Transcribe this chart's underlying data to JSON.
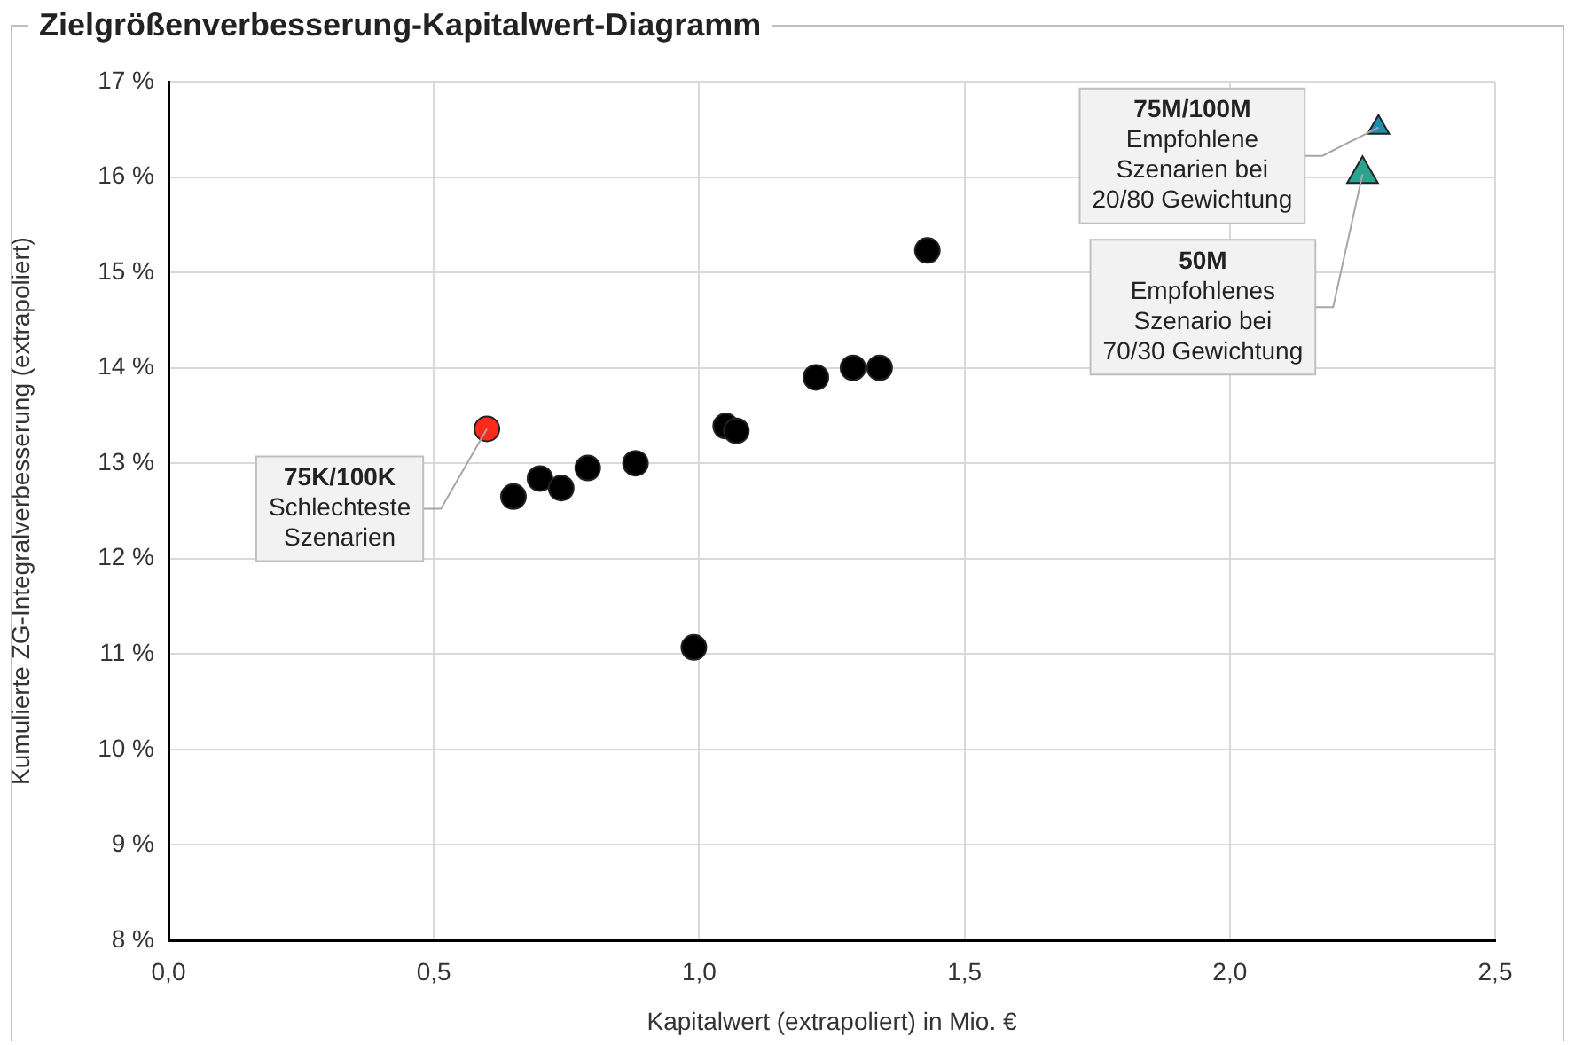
{
  "chart_data": {
    "type": "scatter",
    "title": "Zielgrößenverbesserung-Kapitalwert-Diagramm",
    "xlabel": "Kapitalwert (extrapoliert) in Mio. €",
    "ylabel": "Kumulierte ZG-Integralverbesserung (extrapoliert)",
    "xlim": [
      0,
      2.5
    ],
    "xticks": [
      {
        "value": 0,
        "label": "0,0"
      },
      {
        "value": 0.5,
        "label": "0,5"
      },
      {
        "value": 1,
        "label": "1,0"
      },
      {
        "value": 1.5,
        "label": "1,5"
      },
      {
        "value": 2,
        "label": "2,0"
      },
      {
        "value": 2.5,
        "label": "2,5"
      }
    ],
    "ylim": [
      8,
      17
    ],
    "yticks": [
      {
        "value": 8,
        "label": "8 %"
      },
      {
        "value": 9,
        "label": "9 %"
      },
      {
        "value": 10,
        "label": "10 %"
      },
      {
        "value": 11,
        "label": "11 %"
      },
      {
        "value": 12,
        "label": "12 %"
      },
      {
        "value": 13,
        "label": "13 %"
      },
      {
        "value": 14,
        "label": "14 %"
      },
      {
        "value": 15,
        "label": "15 %"
      },
      {
        "value": 16,
        "label": "16 %"
      },
      {
        "value": 17,
        "label": "17 %"
      }
    ],
    "grid": true,
    "legend": false,
    "series": [
      {
        "color": "#000000",
        "marker": "circle",
        "x": [
          0.65,
          0.7,
          0.74,
          0.79,
          0.88,
          0.99,
          1.05,
          1.07,
          1.22,
          1.29,
          1.34,
          1.43
        ],
        "values": [
          12.65,
          12.84,
          12.74,
          12.95,
          13.0,
          11.07,
          13.39,
          13.34,
          13.9,
          14.0,
          14.0,
          15.23
        ]
      },
      {
        "color": "#ff2a1a",
        "marker": "circle",
        "x": [
          0.6
        ],
        "values": [
          13.36
        ]
      },
      {
        "color": "#2ba38e",
        "marker": "triangle",
        "x": [
          2.25
        ],
        "values": [
          16.03
        ]
      },
      {
        "color": "#1f8fb0",
        "marker": "triangle",
        "x": [
          2.28
        ],
        "values": [
          16.52
        ]
      }
    ],
    "annotations": [
      {
        "text": "75K/100K\nSchlechteste\nSzenarien",
        "x": 0.6,
        "y": 13.36
      },
      {
        "text": "75M/100M\nEmpfohlene\nSzenarien bei\n20/80 Gewichtung",
        "x": 2.28,
        "y": 16.52
      },
      {
        "text": "50M\nEmpfohlenes\nSzenario bei\n70/30 Gewichtung",
        "x": 2.25,
        "y": 16.03
      }
    ]
  }
}
